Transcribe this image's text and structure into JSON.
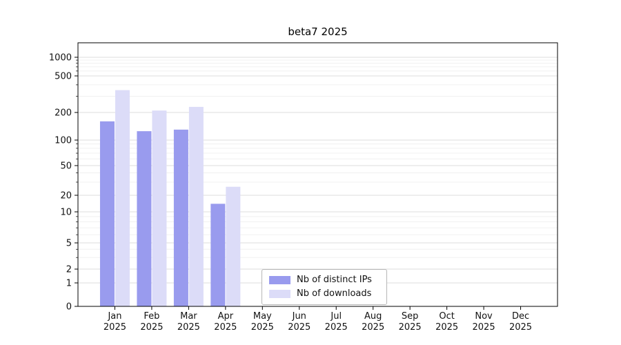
{
  "chart_data": {
    "type": "bar",
    "title": "beta7 2025",
    "categories": [
      "Jan",
      "Feb",
      "Mar",
      "Apr",
      "May",
      "Jun",
      "Jul",
      "Aug",
      "Sep",
      "Oct",
      "Nov",
      "Dec"
    ],
    "xtick_year": "2025",
    "yscale": "symlog",
    "yticks": [
      0,
      1,
      2,
      5,
      10,
      20,
      50,
      100,
      200,
      500,
      1000
    ],
    "ylim": [
      0,
      1400
    ],
    "grid": true,
    "legend_position": "lower center",
    "series": [
      {
        "name": "Nb of distinct IPs",
        "color": "#999bee",
        "values": [
          160,
          125,
          130,
          14,
          0,
          0,
          0,
          0,
          0,
          0,
          0,
          0
        ]
      },
      {
        "name": "Nb of downloads",
        "color": "#dcdcf8",
        "values": [
          350,
          210,
          230,
          26,
          0,
          0,
          0,
          0,
          0,
          0,
          0,
          0
        ]
      }
    ]
  }
}
